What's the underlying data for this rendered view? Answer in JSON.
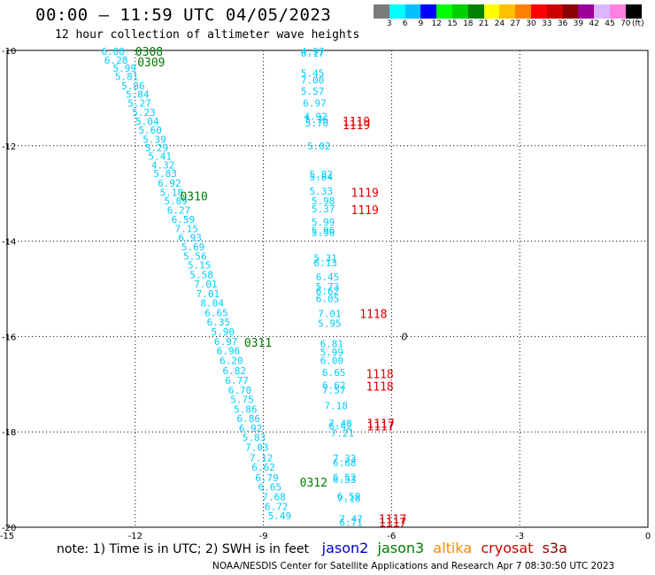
{
  "title": "00:00 — 11:59 UTC 04/05/2023",
  "subtitle": "12 hour collection of altimeter wave heights",
  "colorbar": {
    "unit": "(ft)",
    "labels": [
      "3",
      "6",
      "9",
      "12",
      "15",
      "18",
      "21",
      "24",
      "27",
      "30",
      "33",
      "36",
      "39",
      "42",
      "45",
      "70"
    ],
    "colors": [
      "#7b7b7b",
      "#00ffff",
      "#00c0ff",
      "#0000ff",
      "#00ff00",
      "#00d000",
      "#008000",
      "#ffff00",
      "#ffc000",
      "#ff8000",
      "#ff0000",
      "#cc0000",
      "#8b0000",
      "#9b009b",
      "#dcb4ff",
      "#ff80e0",
      "#000000"
    ]
  },
  "note": "note: 1) Time is in UTC; 2) SWH is in feet",
  "satellites": [
    {
      "name": "jason2",
      "color": "#0000cc"
    },
    {
      "name": "jason3",
      "color": "#007a00"
    },
    {
      "name": "altika",
      "color": "#ff8800"
    },
    {
      "name": "cryosat",
      "color": "#cc0000"
    },
    {
      "name": "s3a",
      "color": "#8b0000"
    }
  ],
  "footer": "NOAA/NESDIS Center for Satellite Applications and Research   Apr  7 08:30:50 UTC 2023",
  "chart_data": {
    "type": "scatter",
    "x_ticks": [
      "-15",
      "-12",
      "-9",
      "-6",
      "-3",
      "0"
    ],
    "y_ticks": [
      "-10",
      "-12",
      "-14",
      "-16",
      "-18",
      "-20"
    ],
    "xlim": [
      -15,
      0
    ],
    "ylim": [
      -20,
      -10
    ],
    "grid": true,
    "value_color": "#00ccff",
    "series": [
      {
        "values": [
          {
            "x": -12.52,
            "y": -10.02,
            "v": "6.08"
          },
          {
            "x": -12.45,
            "y": -10.2,
            "v": "6.28"
          },
          {
            "x": -12.25,
            "y": -10.37,
            "v": "5.99"
          },
          {
            "x": -12.2,
            "y": -10.55,
            "v": "5.81"
          },
          {
            "x": -12.05,
            "y": -10.74,
            "v": "5.86"
          },
          {
            "x": -11.95,
            "y": -10.92,
            "v": "5.84"
          },
          {
            "x": -11.9,
            "y": -11.1,
            "v": "5.27"
          },
          {
            "x": -11.8,
            "y": -11.3,
            "v": "5.23"
          },
          {
            "x": -11.72,
            "y": -11.48,
            "v": "5.04"
          },
          {
            "x": -11.65,
            "y": -11.67,
            "v": "5.60"
          },
          {
            "x": -11.55,
            "y": -11.86,
            "v": "5.39"
          },
          {
            "x": -11.5,
            "y": -12.04,
            "v": "5.29"
          },
          {
            "x": -11.42,
            "y": -12.22,
            "v": "5.41"
          },
          {
            "x": -11.35,
            "y": -12.4,
            "v": "4.32"
          },
          {
            "x": -11.3,
            "y": -12.58,
            "v": "5.83"
          },
          {
            "x": -11.2,
            "y": -12.78,
            "v": "6.92"
          },
          {
            "x": -11.15,
            "y": -12.98,
            "v": "5.18"
          },
          {
            "x": -11.05,
            "y": -13.15,
            "v": "5.09"
          },
          {
            "x": -10.98,
            "y": -13.35,
            "v": "6.27"
          },
          {
            "x": -10.88,
            "y": -13.54,
            "v": "6.59"
          },
          {
            "x": -10.8,
            "y": -13.74,
            "v": "7.15"
          },
          {
            "x": -10.72,
            "y": -13.92,
            "v": "6.93"
          },
          {
            "x": -10.65,
            "y": -14.12,
            "v": "5.69"
          },
          {
            "x": -10.6,
            "y": -14.31,
            "v": "5.56"
          },
          {
            "x": -10.5,
            "y": -14.5,
            "v": "5.15"
          },
          {
            "x": -10.45,
            "y": -14.7,
            "v": "5.58"
          },
          {
            "x": -10.35,
            "y": -14.9,
            "v": "7.01"
          },
          {
            "x": -10.3,
            "y": -15.1,
            "v": "7.01"
          },
          {
            "x": -10.2,
            "y": -15.3,
            "v": "8.04"
          },
          {
            "x": -10.1,
            "y": -15.5,
            "v": "6.65"
          },
          {
            "x": -10.05,
            "y": -15.7,
            "v": "6.35"
          },
          {
            "x": -9.95,
            "y": -15.9,
            "v": "5.90"
          },
          {
            "x": -9.88,
            "y": -16.1,
            "v": "6.97"
          },
          {
            "x": -9.82,
            "y": -16.3,
            "v": "6.96"
          },
          {
            "x": -9.75,
            "y": -16.5,
            "v": "6.20"
          },
          {
            "x": -9.68,
            "y": -16.72,
            "v": "6.82"
          },
          {
            "x": -9.62,
            "y": -16.92,
            "v": "6.77"
          },
          {
            "x": -9.55,
            "y": -17.12,
            "v": "6.70"
          },
          {
            "x": -9.5,
            "y": -17.32,
            "v": "5.75"
          },
          {
            "x": -9.42,
            "y": -17.52,
            "v": "5.86"
          },
          {
            "x": -9.35,
            "y": -17.72,
            "v": "6.86"
          },
          {
            "x": -9.3,
            "y": -17.92,
            "v": "6.92"
          },
          {
            "x": -9.22,
            "y": -18.12,
            "v": "5.83"
          },
          {
            "x": -9.15,
            "y": -18.32,
            "v": "7.03"
          },
          {
            "x": -9.05,
            "y": -18.54,
            "v": "7.12"
          },
          {
            "x": -9.0,
            "y": -18.74,
            "v": "6.62"
          },
          {
            "x": -8.92,
            "y": -18.96,
            "v": "6.79"
          },
          {
            "x": -8.85,
            "y": -19.16,
            "v": "6.65"
          },
          {
            "x": -8.75,
            "y": -19.36,
            "v": "7.68"
          },
          {
            "x": -8.7,
            "y": -19.56,
            "v": "6.72"
          },
          {
            "x": -8.62,
            "y": -19.76,
            "v": "5.49"
          },
          {
            "x": -7.85,
            "y": -10.02,
            "v": "4.97"
          },
          {
            "x": -7.85,
            "y": -10.06,
            "v": "6.17"
          },
          {
            "x": -7.85,
            "y": -10.47,
            "v": "5.45"
          },
          {
            "x": -7.85,
            "y": -10.62,
            "v": "7.00"
          },
          {
            "x": -7.85,
            "y": -10.85,
            "v": "5.57"
          },
          {
            "x": -7.8,
            "y": -11.1,
            "v": "6.97"
          },
          {
            "x": -7.78,
            "y": -11.38,
            "v": "4.92"
          },
          {
            "x": -7.75,
            "y": -11.45,
            "v": "5.76"
          },
          {
            "x": -7.75,
            "y": -11.52,
            "v": "5.70"
          },
          {
            "x": -7.7,
            "y": -12.0,
            "v": "5.02"
          },
          {
            "x": -7.65,
            "y": -12.6,
            "v": "5.82"
          },
          {
            "x": -7.65,
            "y": -12.65,
            "v": "5.84"
          },
          {
            "x": -7.65,
            "y": -12.95,
            "v": "5.33"
          },
          {
            "x": -7.6,
            "y": -13.15,
            "v": "5.98"
          },
          {
            "x": -7.6,
            "y": -13.32,
            "v": "5.37"
          },
          {
            "x": -7.6,
            "y": -13.6,
            "v": "5.99"
          },
          {
            "x": -7.6,
            "y": -13.78,
            "v": "5.96"
          },
          {
            "x": -7.6,
            "y": -13.82,
            "v": "5.96"
          },
          {
            "x": -7.55,
            "y": -14.35,
            "v": "5.31"
          },
          {
            "x": -7.55,
            "y": -14.45,
            "v": "6.13"
          },
          {
            "x": -7.5,
            "y": -14.75,
            "v": "6.45"
          },
          {
            "x": -7.5,
            "y": -14.95,
            "v": "5.73"
          },
          {
            "x": -7.5,
            "y": -15.05,
            "v": "6.62"
          },
          {
            "x": -7.5,
            "y": -15.2,
            "v": "6.05"
          },
          {
            "x": -7.45,
            "y": -15.52,
            "v": "7.01"
          },
          {
            "x": -7.45,
            "y": -15.72,
            "v": "5.95"
          },
          {
            "x": -7.4,
            "y": -16.15,
            "v": "6.81"
          },
          {
            "x": -7.4,
            "y": -16.33,
            "v": "5.99"
          },
          {
            "x": -7.4,
            "y": -16.5,
            "v": "6.00"
          },
          {
            "x": -7.35,
            "y": -16.75,
            "v": "6.65"
          },
          {
            "x": -7.35,
            "y": -17.02,
            "v": "6.62"
          },
          {
            "x": -7.35,
            "y": -17.12,
            "v": "7.57"
          },
          {
            "x": -7.3,
            "y": -17.45,
            "v": "7.18"
          },
          {
            "x": -7.2,
            "y": -17.82,
            "v": "7.48"
          },
          {
            "x": -7.2,
            "y": -17.88,
            "v": "6.42"
          },
          {
            "x": -7.15,
            "y": -18.02,
            "v": "7.21"
          },
          {
            "x": -7.1,
            "y": -18.55,
            "v": "7.33"
          },
          {
            "x": -7.1,
            "y": -18.65,
            "v": "6.68"
          },
          {
            "x": -7.1,
            "y": -18.95,
            "v": "6.52"
          },
          {
            "x": -7.1,
            "y": -19.0,
            "v": "6.53"
          },
          {
            "x": -7.0,
            "y": -19.35,
            "v": "6.59"
          },
          {
            "x": -7.0,
            "y": -19.4,
            "v": "7.16"
          },
          {
            "x": -6.95,
            "y": -19.82,
            "v": "7.47"
          },
          {
            "x": -6.95,
            "y": -19.9,
            "v": "6.71"
          }
        ]
      }
    ],
    "pass_labels": [
      {
        "x": -12.0,
        "y": -10.02,
        "text": "0308",
        "color": "#007a00"
      },
      {
        "x": -11.95,
        "y": -10.24,
        "text": "0309",
        "color": "#007a00"
      },
      {
        "x": -10.95,
        "y": -13.05,
        "text": "0310",
        "color": "#007a00"
      },
      {
        "x": -9.45,
        "y": -16.12,
        "text": "0311",
        "color": "#007a00"
      },
      {
        "x": -8.15,
        "y": -19.05,
        "text": "0312",
        "color": "#007a00"
      },
      {
        "x": -7.15,
        "y": -11.48,
        "text": "1119",
        "color": "#dd0000"
      },
      {
        "x": -7.15,
        "y": -11.56,
        "text": "1119",
        "color": "#dd0000"
      },
      {
        "x": -6.95,
        "y": -12.98,
        "text": "1119",
        "color": "#dd0000"
      },
      {
        "x": -6.95,
        "y": -13.34,
        "text": "1119",
        "color": "#dd0000"
      },
      {
        "x": -6.75,
        "y": -15.52,
        "text": "1118",
        "color": "#dd0000"
      },
      {
        "x": -6.6,
        "y": -16.78,
        "text": "1118",
        "color": "#dd0000"
      },
      {
        "x": -6.6,
        "y": -17.04,
        "text": "1118",
        "color": "#dd0000"
      },
      {
        "x": -6.58,
        "y": -17.82,
        "text": "1117",
        "color": "#dd0000"
      },
      {
        "x": -6.58,
        "y": -17.88,
        "text": "1117",
        "color": "#dd0000"
      },
      {
        "x": -6.3,
        "y": -19.82,
        "text": "1117",
        "color": "#dd0000"
      },
      {
        "x": -6.3,
        "y": -19.9,
        "text": "1117",
        "color": "#dd0000"
      }
    ],
    "markers": [
      {
        "x": -5.7,
        "y": -16.0,
        "text": "0"
      }
    ]
  }
}
